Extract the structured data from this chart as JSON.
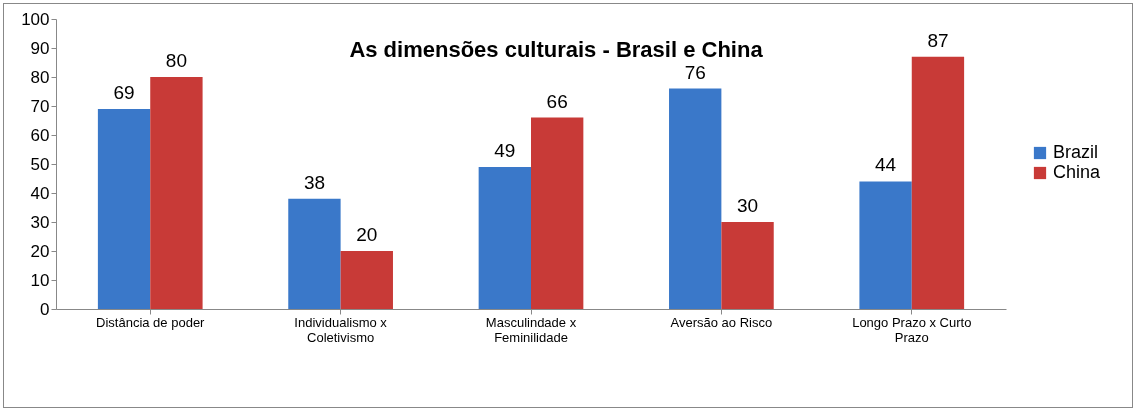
{
  "chart_data": {
    "type": "bar",
    "title": "As dimensões culturais - Brasil e China",
    "categories": [
      "Distância de poder",
      "Individualismo x Coletivismo",
      "Masculindade x Feminilidade",
      "Aversão ao Risco",
      "Longo Prazo x Curto Prazo"
    ],
    "series": [
      {
        "name": "Brazil",
        "color": "#3a78c9",
        "values": [
          69,
          38,
          49,
          76,
          44
        ]
      },
      {
        "name": "China",
        "color": "#c83a37",
        "values": [
          80,
          20,
          66,
          30,
          87
        ]
      }
    ],
    "ylim": [
      0,
      100
    ],
    "yticks": [
      0,
      10,
      20,
      30,
      40,
      50,
      60,
      70,
      80,
      90,
      100
    ],
    "grid": false,
    "legend": "right",
    "data_labels": true
  }
}
